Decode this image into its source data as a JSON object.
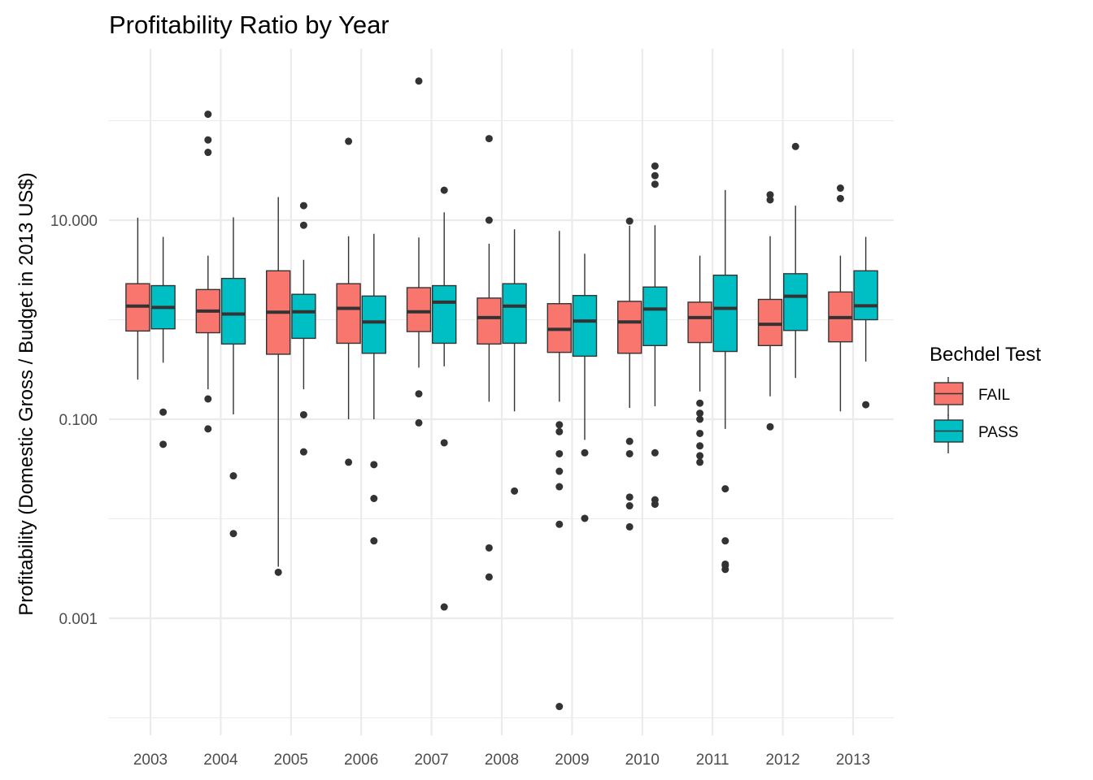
{
  "chart_data": {
    "type": "boxplot",
    "title": "Profitability Ratio by Year",
    "xlabel": "",
    "ylabel": "Profitability (Domestic Gross / Budget in 2013 US$)",
    "y_scale": "log10",
    "ylim": [
      0.00012,
      200
    ],
    "y_ticks": [
      0.001,
      0.1,
      10
    ],
    "y_tick_labels": [
      "0.001",
      "0.100",
      "10.000"
    ],
    "grid": true,
    "legend": {
      "title": "Bechdel Test",
      "position": "right"
    },
    "categories": [
      "2003",
      "2004",
      "2005",
      "2006",
      "2007",
      "2008",
      "2009",
      "2010",
      "2011",
      "2012",
      "2013"
    ],
    "series": [
      {
        "name": "FAIL",
        "color": "#F8766D",
        "boxes": [
          {
            "lower": 0.25,
            "q1": 0.77,
            "median": 1.37,
            "q3": 2.3,
            "upper": 10.6,
            "outliers": []
          },
          {
            "lower": 0.2,
            "q1": 0.74,
            "median": 1.22,
            "q3": 2.01,
            "upper": 4.4,
            "outliers": [
              0.08,
              0.16,
              48,
              64,
              116
            ]
          },
          {
            "lower": 0.0033,
            "q1": 0.45,
            "median": 1.19,
            "q3": 3.1,
            "upper": 17.1,
            "outliers": [
              0.0029
            ]
          },
          {
            "lower": 0.1,
            "q1": 0.58,
            "median": 1.3,
            "q3": 2.3,
            "upper": 6.9,
            "outliers": [
              0.037,
              62
            ]
          },
          {
            "lower": 0.33,
            "q1": 0.76,
            "median": 1.2,
            "q3": 2.1,
            "upper": 6.7,
            "outliers": [
              0.092,
              0.18,
              250
            ]
          },
          {
            "lower": 0.15,
            "q1": 0.57,
            "median": 1.05,
            "q3": 1.65,
            "upper": 5.8,
            "outliers": [
              0.0026,
              0.0051,
              10,
              66
            ]
          },
          {
            "lower": 0.15,
            "q1": 0.47,
            "median": 0.8,
            "q3": 1.45,
            "upper": 7.8,
            "outliers": [
              0.00013,
              0.0088,
              0.021,
              0.03,
              0.045,
              0.075,
              0.088
            ]
          },
          {
            "lower": 0.13,
            "q1": 0.46,
            "median": 0.95,
            "q3": 1.53,
            "upper": 8.8,
            "outliers": [
              0.0083,
              0.0135,
              0.0165,
              0.045,
              0.06,
              9.8
            ]
          },
          {
            "lower": 0.19,
            "q1": 0.59,
            "median": 1.05,
            "q3": 1.5,
            "upper": 4.4,
            "outliers": [
              0.037,
              0.043,
              0.054,
              0.072,
              0.1,
              0.115,
              0.145
            ]
          },
          {
            "lower": 0.17,
            "q1": 0.55,
            "median": 0.9,
            "q3": 1.6,
            "upper": 6.9,
            "outliers": [
              0.084,
              16,
              18
            ]
          },
          {
            "lower": 0.12,
            "q1": 0.6,
            "median": 1.05,
            "q3": 1.9,
            "upper": 4.4,
            "outliers": [
              16.5,
              21
            ]
          }
        ]
      },
      {
        "name": "PASS",
        "color": "#00BFC4",
        "boxes": [
          {
            "lower": 0.37,
            "q1": 0.81,
            "median": 1.33,
            "q3": 2.2,
            "upper": 6.8,
            "outliers": [
              0.056,
              0.118
            ]
          },
          {
            "lower": 0.112,
            "q1": 0.57,
            "median": 1.14,
            "q3": 2.6,
            "upper": 10.7,
            "outliers": [
              0.0071,
              0.027
            ]
          },
          {
            "lower": 0.2,
            "q1": 0.65,
            "median": 1.2,
            "q3": 1.8,
            "upper": 4.0,
            "outliers": [
              0.047,
              0.111,
              8.9,
              14
            ]
          },
          {
            "lower": 0.1,
            "q1": 0.46,
            "median": 0.95,
            "q3": 1.73,
            "upper": 7.3,
            "outliers": [
              0.006,
              0.016,
              0.035
            ]
          },
          {
            "lower": 0.34,
            "q1": 0.58,
            "median": 1.5,
            "q3": 2.2,
            "upper": 12,
            "outliers": [
              0.0013,
              0.058,
              20
            ]
          },
          {
            "lower": 0.12,
            "q1": 0.58,
            "median": 1.37,
            "q3": 2.3,
            "upper": 8.1,
            "outliers": [
              0.019
            ]
          },
          {
            "lower": 0.062,
            "q1": 0.43,
            "median": 0.97,
            "q3": 1.75,
            "upper": 4.6,
            "outliers": [
              0.0101,
              0.046
            ]
          },
          {
            "lower": 0.135,
            "q1": 0.55,
            "median": 1.28,
            "q3": 2.13,
            "upper": 8.9,
            "outliers": [
              0.014,
              0.0155,
              0.046,
              23,
              28,
              35
            ]
          },
          {
            "lower": 0.08,
            "q1": 0.48,
            "median": 1.3,
            "q3": 2.8,
            "upper": 20.1,
            "outliers": [
              0.0031,
              0.0034,
              0.0035,
              0.006,
              0.02
            ]
          },
          {
            "lower": 0.26,
            "q1": 0.78,
            "median": 1.72,
            "q3": 2.9,
            "upper": 14,
            "outliers": [
              55
            ]
          },
          {
            "lower": 0.38,
            "q1": 1.0,
            "median": 1.38,
            "q3": 3.1,
            "upper": 6.8,
            "outliers": [
              0.14
            ]
          }
        ]
      }
    ]
  }
}
